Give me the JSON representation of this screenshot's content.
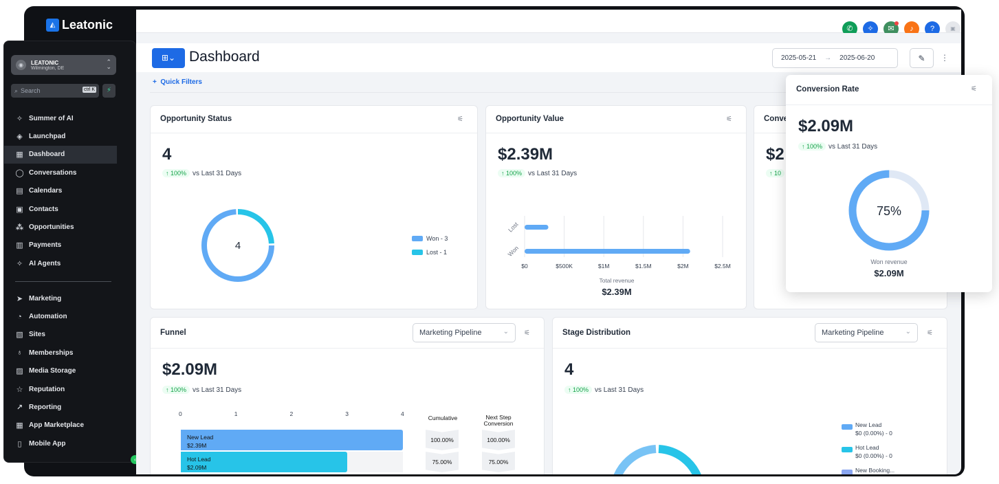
{
  "brand": {
    "name": "Leatonic"
  },
  "account": {
    "name": "LEATONIC",
    "location": "Wilmington, DE"
  },
  "search": {
    "placeholder": "Search",
    "shortcut": "ctrl K"
  },
  "nav_top": [
    {
      "label": "Summer of AI",
      "icon": "sparkle-icon"
    },
    {
      "label": "Launchpad",
      "icon": "rocket-icon"
    },
    {
      "label": "Dashboard",
      "icon": "grid-icon",
      "active": true
    },
    {
      "label": "Conversations",
      "icon": "chat-icon"
    },
    {
      "label": "Calendars",
      "icon": "calendar-icon"
    },
    {
      "label": "Contacts",
      "icon": "contact-icon"
    },
    {
      "label": "Opportunities",
      "icon": "network-icon"
    },
    {
      "label": "Payments",
      "icon": "receipt-icon"
    },
    {
      "label": "AI Agents",
      "icon": "sparkle-icon"
    }
  ],
  "nav_bottom": [
    {
      "label": "Marketing",
      "icon": "send-icon"
    },
    {
      "label": "Automation",
      "icon": "automation-icon"
    },
    {
      "label": "Sites",
      "icon": "site-icon"
    },
    {
      "label": "Memberships",
      "icon": "badge-icon"
    },
    {
      "label": "Media Storage",
      "icon": "image-icon"
    },
    {
      "label": "Reputation",
      "icon": "star-icon"
    },
    {
      "label": "Reporting",
      "icon": "trend-icon"
    },
    {
      "label": "App Marketplace",
      "icon": "apps-icon"
    },
    {
      "label": "Mobile App",
      "icon": "phone-icon"
    }
  ],
  "header": {
    "title": "Dashboard",
    "date_start": "2025-05-21",
    "date_end": "2025-06-20",
    "quick_filters": "Quick Filters"
  },
  "colors": {
    "primary": "#1d6ae5",
    "won": "#60aaf5",
    "lost": "#27c4e8",
    "ring_bg": "#dfe8f5",
    "positive": "#16a34a"
  },
  "vs_text": "vs Last 31 Days",
  "opportunity_status": {
    "title": "Opportunity Status",
    "value": "4",
    "change": "↑ 100%",
    "center": "4",
    "legend": [
      {
        "label": "Won - 3",
        "value": 3
      },
      {
        "label": "Lost - 1",
        "value": 1
      }
    ]
  },
  "opportunity_value": {
    "title": "Opportunity Value",
    "value": "$2.39M",
    "change": "↑ 100%",
    "footer_label": "Total revenue",
    "footer_value": "$2.39M"
  },
  "conversion_card": {
    "title": "Conve",
    "value": "$2",
    "change": "↑ 10"
  },
  "conversion_popup": {
    "title": "Conversion Rate",
    "value": "$2.09M",
    "change": "↑ 100%",
    "percent": "75%",
    "percent_value": 75,
    "footer_label": "Won revenue",
    "footer_value": "$2.09M"
  },
  "funnel": {
    "title": "Funnel",
    "pipeline": "Marketing Pipeline",
    "value": "$2.09M",
    "change": "↑ 100%",
    "col_cumulative": "Cumulative",
    "col_next": "Next Step Conversion",
    "rows": [
      {
        "name": "New Lead",
        "amount": "$2.39M",
        "count": 4,
        "cumulative": "100.00%",
        "next": "100.00%"
      },
      {
        "name": "Hot Lead",
        "amount": "$2.09M",
        "count": 3,
        "cumulative": "75.00%",
        "next": "75.00%"
      }
    ]
  },
  "stage_distribution": {
    "title": "Stage Distribution",
    "pipeline": "Marketing Pipeline",
    "value": "4",
    "change": "↑ 100%",
    "legend": [
      {
        "name": "New Lead",
        "detail": "$0 (0.00%) - 0",
        "color": "#60aaf5"
      },
      {
        "name": "Hot Lead",
        "detail": "$0 (0.00%) - 0",
        "color": "#27c4e8"
      },
      {
        "name": "New Booking...",
        "detail": "",
        "color": "#8aa6f0"
      }
    ]
  },
  "chart_data": [
    {
      "type": "bar",
      "orientation": "horizontal",
      "categories": [
        "Lost",
        "Won"
      ],
      "values": [
        300000,
        2090000
      ],
      "xlim": [
        0,
        2500000
      ],
      "xticks": [
        "$0",
        "$500K",
        "$1M",
        "$1.5M",
        "$2M",
        "$2.5M"
      ],
      "xlabel": "Total revenue"
    },
    {
      "type": "bar",
      "orientation": "horizontal",
      "categories": [
        "New Lead",
        "Hot Lead"
      ],
      "values": [
        4,
        3
      ],
      "xlim": [
        0,
        4
      ],
      "xticks": [
        "0",
        "1",
        "2",
        "3",
        "4"
      ]
    }
  ]
}
